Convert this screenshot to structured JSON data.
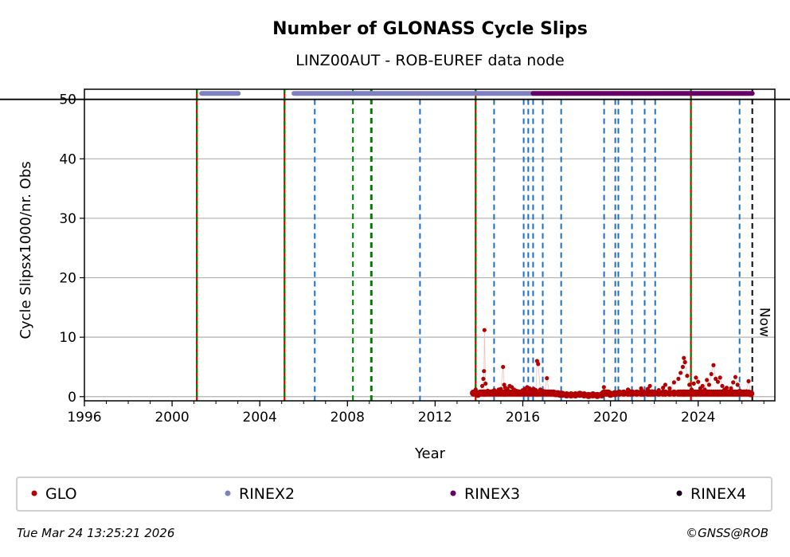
{
  "chart_data": {
    "type": "scatter",
    "title": "Number of GLONASS Cycle Slips",
    "subtitle": "LINZ00AUT - ROB-EUREF data node",
    "xlabel": "Year",
    "ylabel": "Cycle Slipsx1000/nr. Obs",
    "xlim": [
      1996,
      2027.5
    ],
    "ylim": [
      -0.7,
      51.7
    ],
    "x_ticks": [
      "1996",
      "2000",
      "2004",
      "2008",
      "2012",
      "2016",
      "2020",
      "2024"
    ],
    "y_ticks": [
      "0",
      "10",
      "20",
      "30",
      "40",
      "50"
    ],
    "grid": "horizontal",
    "reference_line": 50,
    "now_label": "Now",
    "colors": {
      "GLO": "#b30000",
      "RINEX2": "#8080c0",
      "RINEX3": "#660066",
      "RINEX4": "#1a0020",
      "blue": "#1f6fbf",
      "green": "#008000",
      "red": "#d00000"
    },
    "events": [
      {
        "x": 2001.13,
        "type": "redgreen"
      },
      {
        "x": 2005.13,
        "type": "redgreen"
      },
      {
        "x": 2013.85,
        "type": "redgreen"
      },
      {
        "x": 2023.67,
        "type": "redgreen"
      },
      {
        "x": 2008.25,
        "type": "green"
      },
      {
        "x": 2009.09,
        "type": "green2"
      },
      {
        "x": 2006.51,
        "type": "blue"
      },
      {
        "x": 2011.31,
        "type": "blue"
      },
      {
        "x": 2014.69,
        "type": "blue"
      },
      {
        "x": 2016.04,
        "type": "blue"
      },
      {
        "x": 2016.25,
        "type": "blue"
      },
      {
        "x": 2016.47,
        "type": "blue"
      },
      {
        "x": 2016.91,
        "type": "blue"
      },
      {
        "x": 2017.75,
        "type": "blue"
      },
      {
        "x": 2019.71,
        "type": "blue"
      },
      {
        "x": 2020.22,
        "type": "blue"
      },
      {
        "x": 2020.36,
        "type": "blue"
      },
      {
        "x": 2020.98,
        "type": "blue"
      },
      {
        "x": 2021.56,
        "type": "blue"
      },
      {
        "x": 2022.04,
        "type": "blue"
      },
      {
        "x": 2025.89,
        "type": "blue"
      },
      {
        "x": 2026.47,
        "type": "now"
      }
    ],
    "rinex_segments": [
      {
        "series": "RINEX2",
        "from": 2001.35,
        "to": 2003.02,
        "y": 51
      },
      {
        "series": "RINEX2",
        "from": 2005.56,
        "to": 2016.47,
        "y": 51
      },
      {
        "series": "RINEX3",
        "from": 2016.47,
        "to": 2026.47,
        "y": 51
      }
    ],
    "glo_points": [
      [
        2013.75,
        0.6
      ],
      [
        2013.85,
        1.2
      ],
      [
        2013.95,
        0.4
      ],
      [
        2014.05,
        0.8
      ],
      [
        2014.15,
        1.8
      ],
      [
        2014.2,
        3.0
      ],
      [
        2014.23,
        4.3
      ],
      [
        2014.25,
        11.2
      ],
      [
        2014.3,
        2.2
      ],
      [
        2014.4,
        1.0
      ],
      [
        2014.5,
        0.7
      ],
      [
        2014.6,
        0.9
      ],
      [
        2014.7,
        1.1
      ],
      [
        2014.8,
        0.8
      ],
      [
        2014.9,
        1.2
      ],
      [
        2015.0,
        1.3
      ],
      [
        2015.1,
        5.0
      ],
      [
        2015.15,
        2.0
      ],
      [
        2015.2,
        1.5
      ],
      [
        2015.3,
        1.3
      ],
      [
        2015.4,
        1.8
      ],
      [
        2015.5,
        1.6
      ],
      [
        2015.6,
        1.2
      ],
      [
        2015.7,
        1.0
      ],
      [
        2015.8,
        0.9
      ],
      [
        2015.9,
        0.7
      ],
      [
        2016.0,
        1.1
      ],
      [
        2016.1,
        1.3
      ],
      [
        2016.2,
        1.6
      ],
      [
        2016.3,
        1.4
      ],
      [
        2016.4,
        1.2
      ],
      [
        2016.5,
        1.3
      ],
      [
        2016.6,
        1.1
      ],
      [
        2016.65,
        6.0
      ],
      [
        2016.7,
        5.5
      ],
      [
        2016.8,
        1.2
      ],
      [
        2016.9,
        1.0
      ],
      [
        2017.0,
        0.9
      ],
      [
        2017.1,
        3.1
      ],
      [
        2017.2,
        0.8
      ],
      [
        2017.3,
        0.7
      ],
      [
        2017.4,
        0.6
      ],
      [
        2017.5,
        0.5
      ],
      [
        2017.6,
        0.5
      ],
      [
        2017.7,
        0.4
      ],
      [
        2017.8,
        0.4
      ],
      [
        2018.0,
        0.3
      ],
      [
        2018.2,
        0.3
      ],
      [
        2018.4,
        0.3
      ],
      [
        2018.6,
        0.4
      ],
      [
        2018.8,
        0.3
      ],
      [
        2019.0,
        0.2
      ],
      [
        2019.2,
        0.3
      ],
      [
        2019.4,
        0.2
      ],
      [
        2019.6,
        0.3
      ],
      [
        2019.7,
        1.6
      ],
      [
        2019.8,
        0.8
      ],
      [
        2019.9,
        0.6
      ],
      [
        2020.0,
        0.4
      ],
      [
        2020.2,
        0.5
      ],
      [
        2020.4,
        0.8
      ],
      [
        2020.6,
        0.7
      ],
      [
        2020.8,
        1.2
      ],
      [
        2020.9,
        0.9
      ],
      [
        2021.0,
        0.6
      ],
      [
        2021.2,
        0.8
      ],
      [
        2021.4,
        1.4
      ],
      [
        2021.5,
        0.9
      ],
      [
        2021.7,
        1.3
      ],
      [
        2021.8,
        1.8
      ],
      [
        2021.9,
        0.9
      ],
      [
        2022.0,
        0.7
      ],
      [
        2022.2,
        1.1
      ],
      [
        2022.4,
        1.5
      ],
      [
        2022.5,
        2.0
      ],
      [
        2022.7,
        1.4
      ],
      [
        2022.9,
        2.4
      ],
      [
        2023.1,
        3.0
      ],
      [
        2023.2,
        4.0
      ],
      [
        2023.3,
        5.0
      ],
      [
        2023.35,
        6.5
      ],
      [
        2023.4,
        5.8
      ],
      [
        2023.5,
        3.5
      ],
      [
        2023.6,
        2.0
      ],
      [
        2023.7,
        1.2
      ],
      [
        2023.8,
        2.2
      ],
      [
        2023.9,
        3.2
      ],
      [
        2024.0,
        2.5
      ],
      [
        2024.1,
        1.4
      ],
      [
        2024.2,
        1.8
      ],
      [
        2024.3,
        1.2
      ],
      [
        2024.4,
        2.8
      ],
      [
        2024.5,
        2.0
      ],
      [
        2024.6,
        3.8
      ],
      [
        2024.7,
        5.3
      ],
      [
        2024.8,
        3.0
      ],
      [
        2024.9,
        2.5
      ],
      [
        2025.0,
        3.2
      ],
      [
        2025.1,
        1.8
      ],
      [
        2025.2,
        1.2
      ],
      [
        2025.3,
        1.5
      ],
      [
        2025.4,
        0.9
      ],
      [
        2025.5,
        1.4
      ],
      [
        2025.6,
        2.4
      ],
      [
        2025.7,
        3.3
      ],
      [
        2025.8,
        2.0
      ],
      [
        2025.9,
        1.0
      ],
      [
        2026.0,
        0.8
      ],
      [
        2026.1,
        0.6
      ],
      [
        2026.2,
        0.9
      ],
      [
        2026.3,
        2.6
      ],
      [
        2026.4,
        0.5
      ]
    ],
    "legend": {
      "placement": "bottom",
      "entries": [
        "GLO",
        "RINEX2",
        "RINEX3",
        "RINEX4"
      ]
    }
  },
  "footer": {
    "timestamp": "Tue Mar 24 13:25:21 2026",
    "copyright": "©GNSS@ROB"
  }
}
